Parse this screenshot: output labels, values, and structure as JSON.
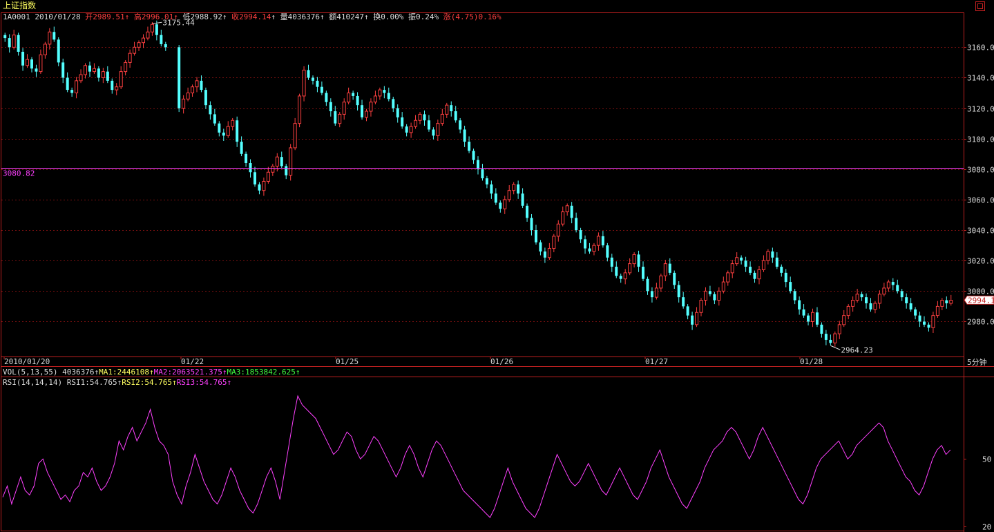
{
  "window": {
    "title": "上证指数"
  },
  "quote": {
    "code": "1A0001",
    "date": "2010/01/28",
    "open_label": "开",
    "open": "2989.51",
    "high_label": "高",
    "high": "2996.01",
    "low_label": "低",
    "low": "2988.92",
    "close_label": "收",
    "close": "2994.14",
    "volume_label": "量",
    "volume": "4036376",
    "amount_label": "额",
    "amount": "410247",
    "turnover_label": "换",
    "turnover": "0.00%",
    "amplitude_label": "振",
    "amplitude": "0.24%",
    "change_label": "涨",
    "change": "(4.75)",
    "change_pct": "0.16%",
    "arrow": "↑"
  },
  "vol_indicator": {
    "name": "VOL(5,13,55)",
    "value": "4036376",
    "ma1": "MA1:2446108",
    "ma2": "MA2:2063521.375",
    "ma3": "MA3:1853842.625"
  },
  "rsi_indicator": {
    "name": "RSI(14,14,14)",
    "rsi1": "RSI1:54.765",
    "rsi2": "RSI2:54.765",
    "rsi3": "RSI3:54.765"
  },
  "period": "5分钟",
  "colors": {
    "up": "#ff4040",
    "down": "#54ffff",
    "grid": "#c02020",
    "rsi": "#ff40ff",
    "crosshair": "#ff40ff"
  },
  "chart_data": [
    {
      "type": "candlestick",
      "title": "上证指数",
      "y_axis_ticks": [
        "2980.0",
        "3000.0",
        "3020.0",
        "3040.0",
        "3060.0",
        "3080.0",
        "3100.0",
        "3120.0",
        "3140.0",
        "3160.0"
      ],
      "ylim": [
        2958,
        3181
      ],
      "x_date_labels": [
        "2010/01/20",
        "01/22",
        "01/25",
        "01/26",
        "01/27",
        "01/28"
      ],
      "annotations": {
        "max_label": "3175.44",
        "min_label": "2964.23",
        "crosshair_level": "3080.82",
        "last_price": "2994.1"
      },
      "series_close": [
        3166,
        3160,
        3168,
        3157,
        3148,
        3152,
        3146,
        3144,
        3155,
        3162,
        3170,
        3165,
        3150,
        3140,
        3132,
        3130,
        3138,
        3142,
        3148,
        3144,
        3146,
        3140,
        3144,
        3138,
        3132,
        3134,
        3144,
        3150,
        3156,
        3160,
        3163,
        3166,
        3170,
        3175,
        3168,
        3162,
        3160,
        null,
        null,
        3120,
        3126,
        3130,
        3134,
        3138,
        3132,
        3122,
        3116,
        3110,
        3104,
        3102,
        3108,
        3112,
        3098,
        3090,
        3084,
        3078,
        3070,
        3066,
        3072,
        3078,
        3082,
        3088,
        3082,
        3076,
        3094,
        3110,
        3128,
        3145,
        3140,
        3138,
        3134,
        3130,
        3124,
        3118,
        3110,
        3116,
        3124,
        3130,
        3128,
        3122,
        3114,
        3118,
        3124,
        3128,
        3132,
        3130,
        3126,
        3120,
        3114,
        3108,
        3104,
        3108,
        3112,
        3116,
        3112,
        3106,
        3102,
        3110,
        3116,
        3122,
        3118,
        3112,
        3106,
        3098,
        3092,
        3086,
        3080,
        3074,
        3070,
        3064,
        3058,
        3054,
        3060,
        3066,
        3070,
        3064,
        3056,
        3048,
        3040,
        3032,
        3026,
        3022,
        3028,
        3036,
        3044,
        3052,
        3056,
        3048,
        3040,
        3034,
        3028,
        3026,
        3030,
        3036,
        3030,
        3022,
        3016,
        3010,
        3008,
        3012,
        3018,
        3024,
        3016,
        3008,
        3000,
        2996,
        3002,
        3010,
        3018,
        3012,
        3004,
        2996,
        2990,
        2984,
        2978,
        2986,
        2994,
        3000,
        2998,
        2994,
        3000,
        3006,
        3012,
        3018,
        3022,
        3020,
        3016,
        3012,
        3008,
        3014,
        3020,
        3026,
        3022,
        3016,
        3012,
        3006,
        3000,
        2994,
        2988,
        2984,
        2980,
        2986,
        2978,
        2972,
        2968,
        2966,
        2972,
        2978,
        2984,
        2990,
        2994,
        2998,
        2996,
        2992,
        2988,
        2992,
        2998,
        3002,
        3006,
        3004,
        3000,
        2996,
        2992,
        2988,
        2984,
        2980,
        2978,
        2976,
        2984,
        2990,
        2994,
        2992,
        2994
      ]
    },
    {
      "type": "line",
      "title": "RSI(14,14,14)",
      "y_axis_ticks": [
        "20",
        "50"
      ],
      "ylim": [
        20,
        82
      ],
      "series": [
        {
          "name": "RSI1",
          "values": [
            33,
            38,
            30,
            36,
            42,
            36,
            34,
            38,
            48,
            50,
            44,
            40,
            36,
            32,
            34,
            31,
            36,
            38,
            44,
            42,
            46,
            40,
            36,
            38,
            42,
            48,
            58,
            54,
            60,
            64,
            58,
            62,
            66,
            72,
            64,
            58,
            56,
            52,
            40,
            34,
            30,
            38,
            44,
            52,
            46,
            40,
            36,
            32,
            30,
            34,
            40,
            46,
            42,
            36,
            32,
            28,
            26,
            30,
            36,
            42,
            46,
            40,
            32,
            44,
            56,
            68,
            78,
            74,
            72,
            70,
            68,
            64,
            60,
            56,
            52,
            54,
            58,
            62,
            60,
            54,
            50,
            52,
            56,
            60,
            58,
            54,
            50,
            46,
            42,
            46,
            52,
            56,
            52,
            46,
            42,
            48,
            54,
            58,
            56,
            52,
            48,
            44,
            40,
            36,
            34,
            32,
            30,
            28,
            26,
            24,
            28,
            34,
            40,
            46,
            40,
            36,
            32,
            28,
            26,
            24,
            28,
            34,
            40,
            46,
            52,
            48,
            44,
            40,
            38,
            40,
            44,
            48,
            44,
            40,
            36,
            34,
            38,
            42,
            46,
            42,
            38,
            34,
            32,
            36,
            40,
            46,
            50,
            54,
            48,
            42,
            38,
            34,
            30,
            28,
            32,
            36,
            40,
            46,
            50,
            54,
            56,
            58,
            62,
            64,
            62,
            58,
            54,
            50,
            54,
            60,
            64,
            60,
            56,
            52,
            48,
            44,
            40,
            36,
            32,
            30,
            34,
            40,
            46,
            50,
            52,
            54,
            56,
            58,
            54,
            50,
            52,
            56,
            58,
            60,
            62,
            64,
            66,
            64,
            58,
            54,
            50,
            46,
            42,
            40,
            36,
            34,
            38,
            44,
            50,
            54,
            56,
            52,
            54
          ]
        }
      ]
    }
  ]
}
